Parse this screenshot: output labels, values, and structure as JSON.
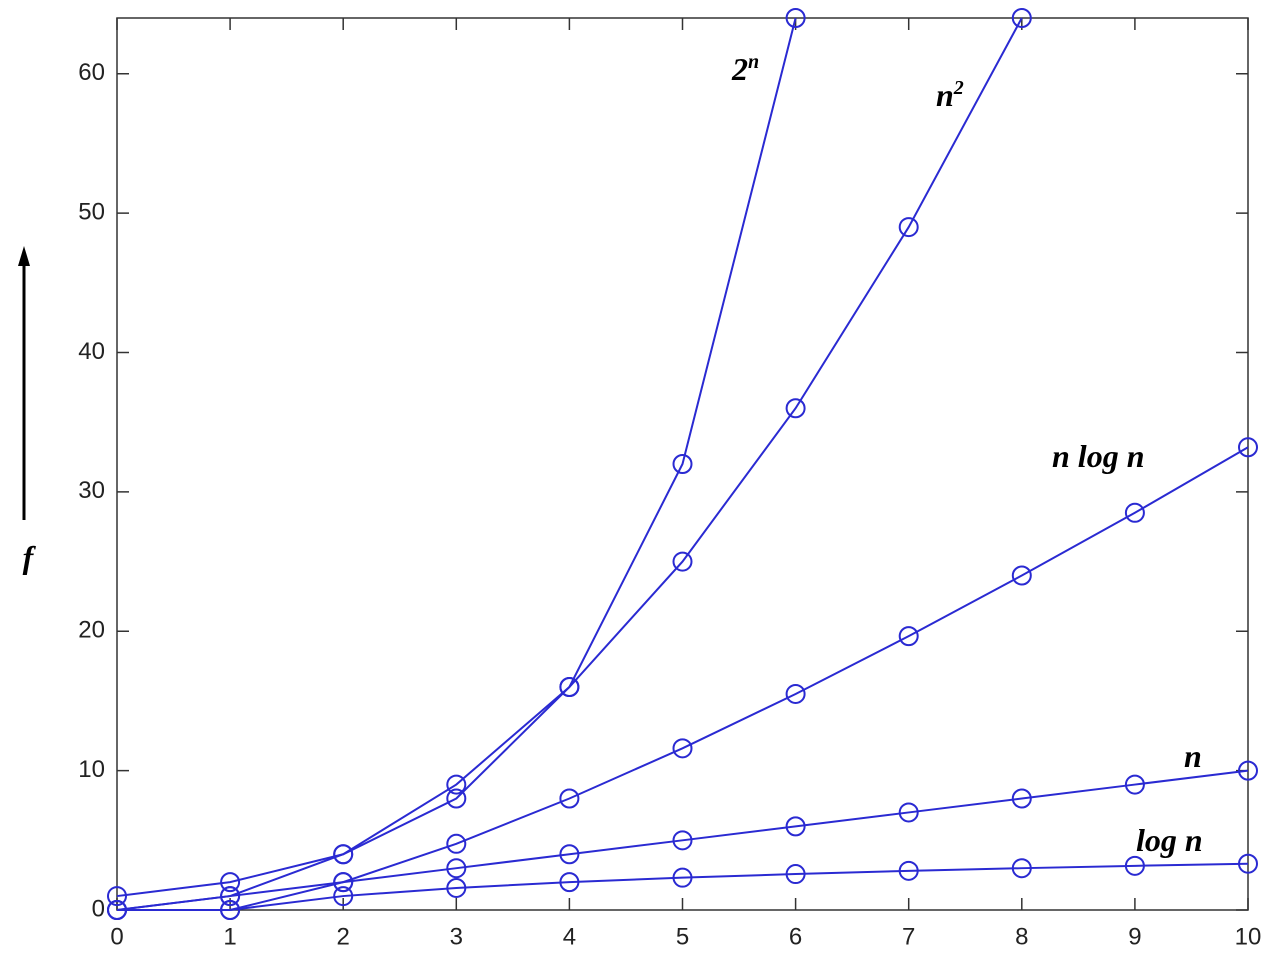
{
  "chart_data": {
    "type": "line",
    "y_label": "f",
    "x": [
      0,
      1,
      2,
      3,
      4,
      5,
      6,
      7,
      8,
      9,
      10
    ],
    "series": [
      {
        "name": "2",
        "name_sup": "n",
        "color": "#2a2ad2",
        "values": [
          1,
          2,
          4,
          8,
          16,
          32,
          64,
          null,
          null,
          null,
          null
        ]
      },
      {
        "name": "n",
        "name_sup": "2",
        "color": "#2a2ad2",
        "values": [
          0,
          1,
          4,
          9,
          16,
          25,
          36,
          49,
          64,
          null,
          null
        ]
      },
      {
        "name": "n log n",
        "color": "#2a2ad2",
        "values": [
          0,
          0,
          2,
          4.75,
          8,
          11.6,
          15.5,
          19.65,
          24,
          28.5,
          33.2
        ]
      },
      {
        "name": "n",
        "color": "#2a2ad2",
        "values": [
          0,
          1,
          2,
          3,
          4,
          5,
          6,
          7,
          8,
          9,
          10
        ]
      },
      {
        "name": "log n",
        "color": "#2a2ad2",
        "values": [
          null,
          0,
          1,
          1.58,
          2,
          2.32,
          2.58,
          2.81,
          3,
          3.17,
          3.32
        ]
      }
    ],
    "xlim": [
      0,
      10
    ],
    "ylim": [
      0,
      64
    ],
    "xticks": [
      0,
      1,
      2,
      3,
      4,
      5,
      6,
      7,
      8,
      9,
      10
    ],
    "yticks": [
      0,
      10,
      20,
      30,
      40,
      50,
      60
    ]
  }
}
